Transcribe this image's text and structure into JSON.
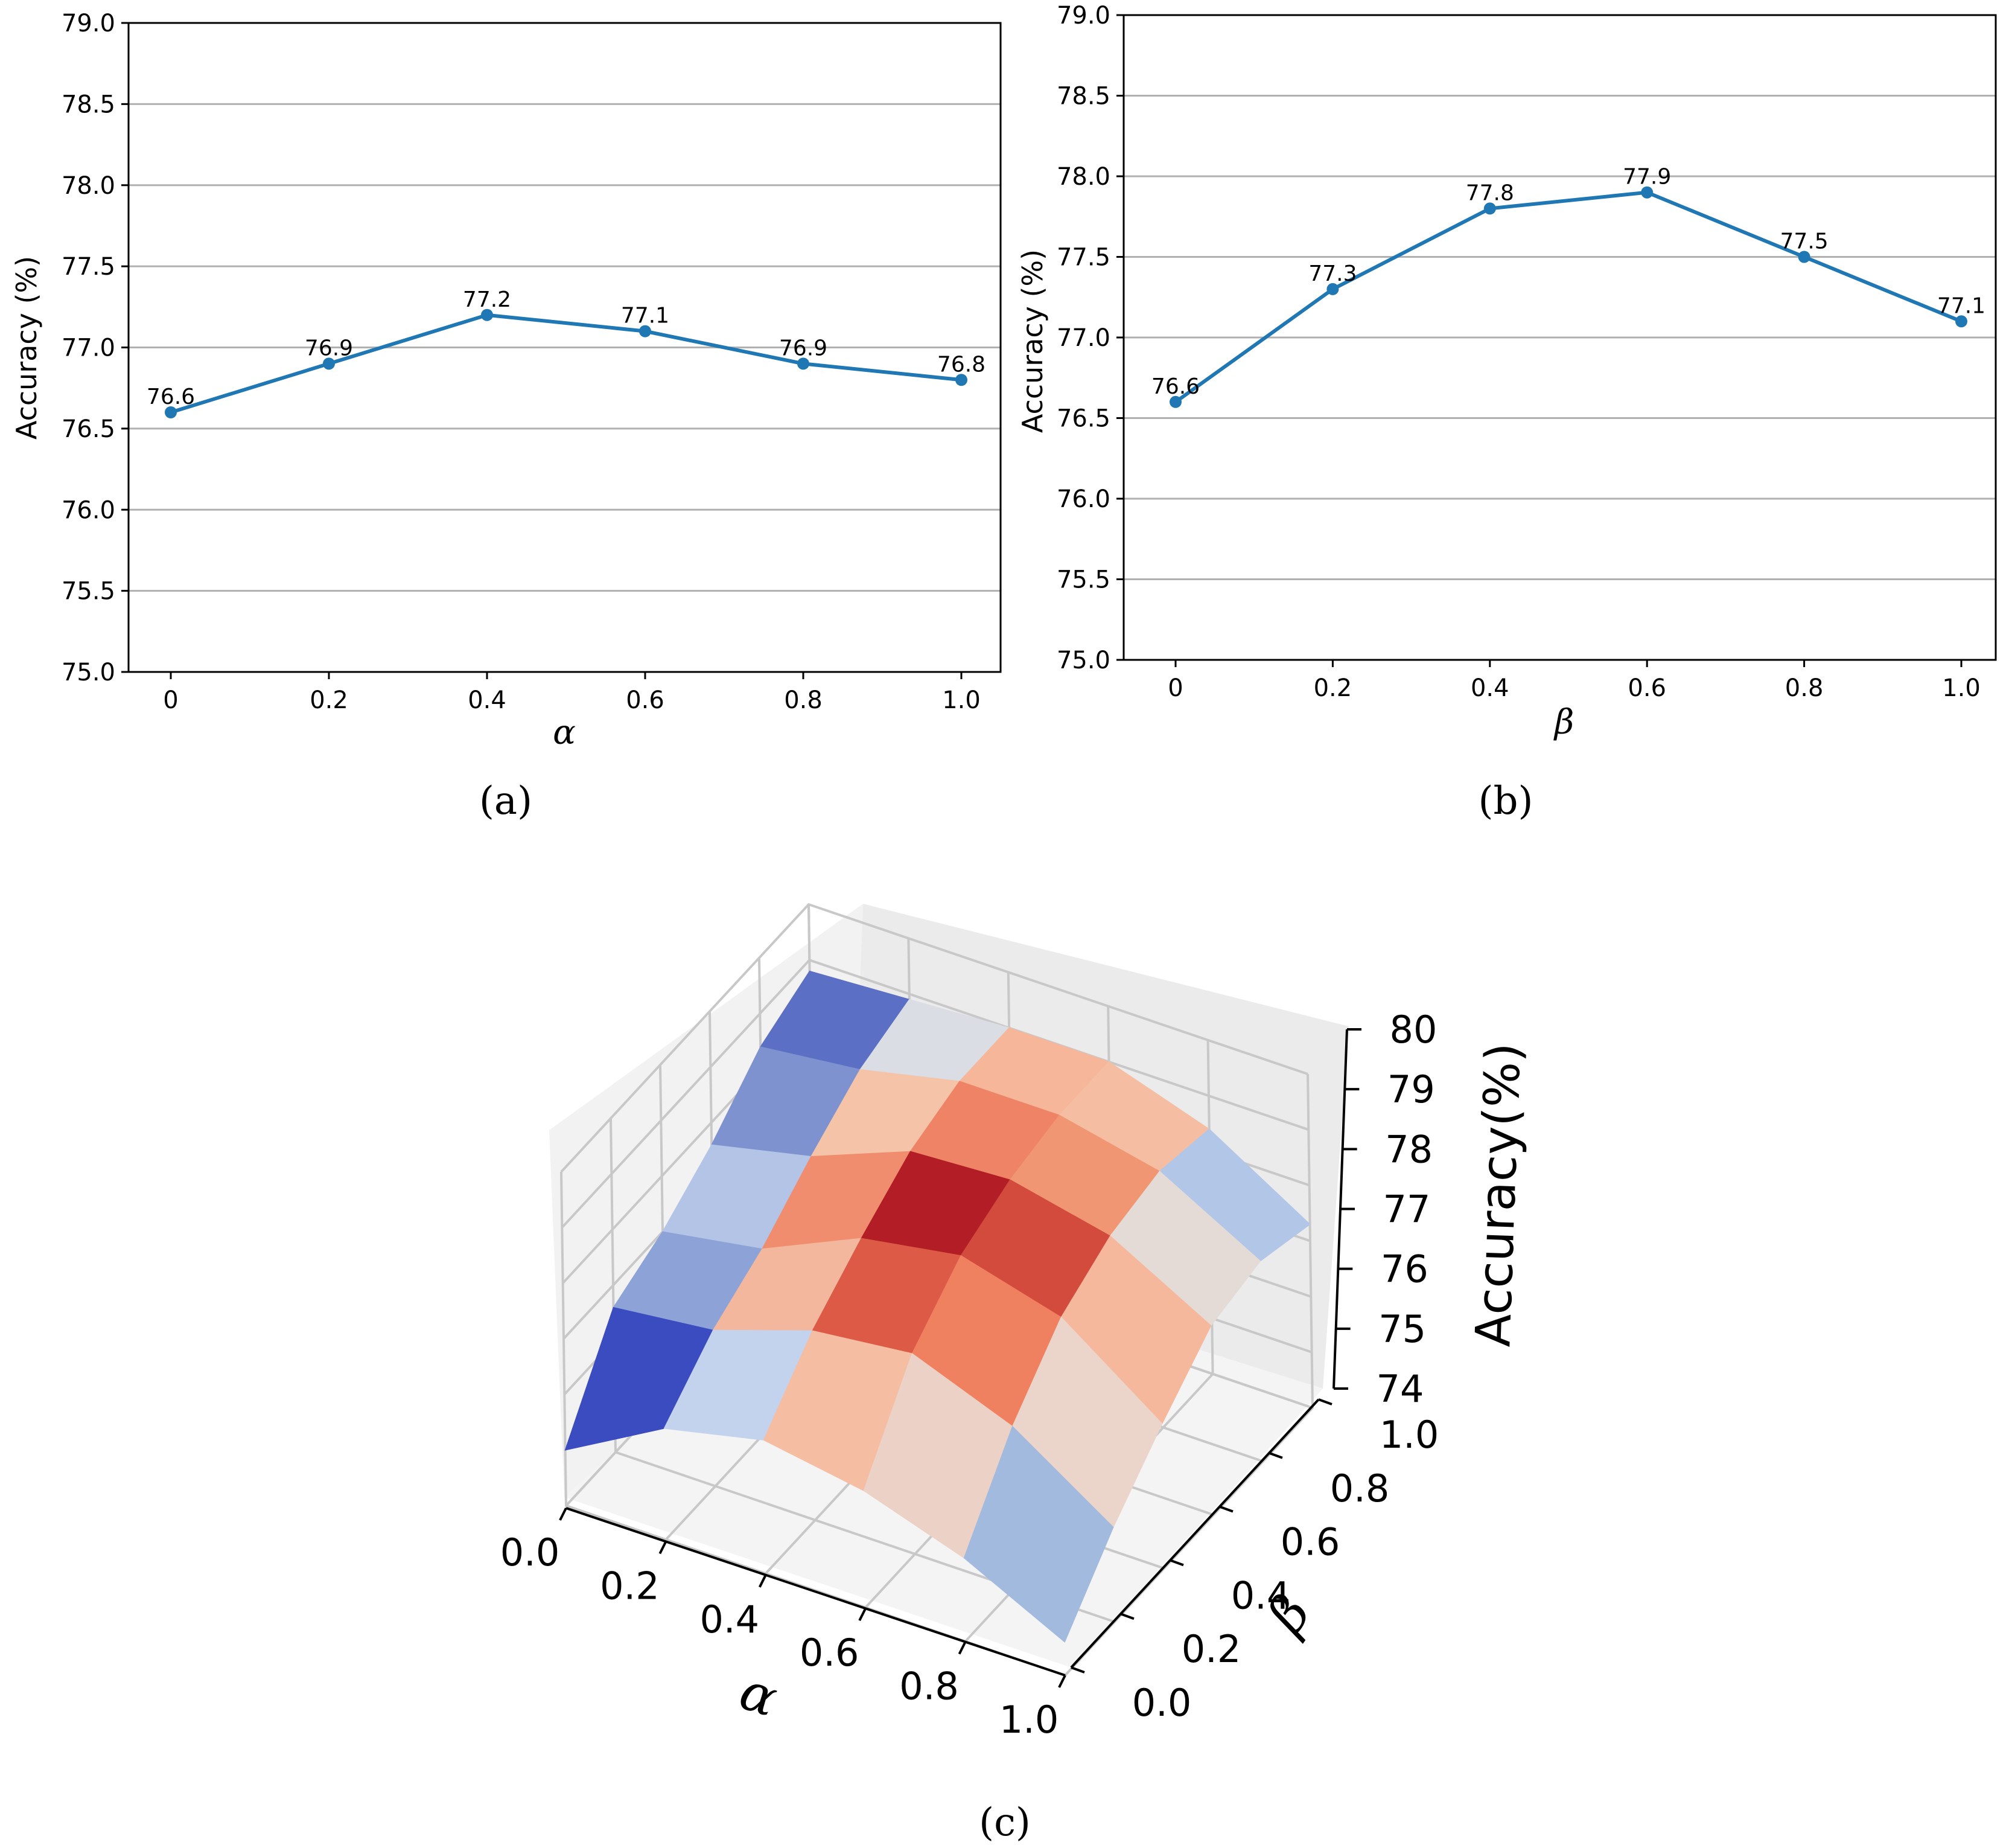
{
  "chart_data": [
    {
      "type": "line",
      "panel": "a",
      "caption": "(a)",
      "x": [
        "0",
        "0.2",
        "0.4",
        "0.6",
        "0.8",
        "1.0"
      ],
      "values": [
        76.6,
        76.9,
        77.2,
        77.1,
        76.9,
        76.8
      ],
      "point_labels": [
        "76.6",
        "76.9",
        "77.2",
        "77.1",
        "76.9",
        "76.8"
      ],
      "xlabel": "α",
      "ylabel": "Accuracy (%)",
      "ylim": [
        75.0,
        79.0
      ],
      "yticks": [
        "75.0",
        "75.5",
        "76.0",
        "76.5",
        "77.0",
        "77.5",
        "78.0",
        "78.5",
        "79.0"
      ],
      "grid": "horizontal",
      "color": "#1f77b4"
    },
    {
      "type": "line",
      "panel": "b",
      "caption": "(b)",
      "x": [
        "0",
        "0.2",
        "0.4",
        "0.6",
        "0.8",
        "1.0"
      ],
      "values": [
        76.6,
        77.3,
        77.8,
        77.9,
        77.5,
        77.1
      ],
      "point_labels": [
        "76.6",
        "77.3",
        "77.8",
        "77.9",
        "77.5",
        "77.1"
      ],
      "xlabel": "β",
      "ylabel": "Accuracy (%)",
      "ylim": [
        75.0,
        79.0
      ],
      "yticks": [
        "75.0",
        "75.5",
        "76.0",
        "76.5",
        "77.0",
        "77.5",
        "78.0",
        "78.5",
        "79.0"
      ],
      "grid": "horizontal",
      "color": "#1f77b4"
    },
    {
      "type": "surface",
      "panel": "c",
      "caption": "(c)",
      "alpha": [
        0.0,
        0.2,
        0.4,
        0.6,
        0.8,
        1.0
      ],
      "beta": [
        0.0,
        0.2,
        0.4,
        0.6,
        0.8,
        1.0
      ],
      "z_rows_by_alpha": [
        [
          75.0,
          76.6,
          77.0,
          77.6,
          78.4,
          78.8
        ],
        [
          76.0,
          76.8,
          77.3,
          78.0,
          78.6,
          78.9
        ],
        [
          76.4,
          77.4,
          78.1,
          78.7,
          79.0,
          79.0
        ],
        [
          76.1,
          77.6,
          78.4,
          78.8,
          79.0,
          79.0
        ],
        [
          75.5,
          76.9,
          77.9,
          78.4,
          78.6,
          78.4
        ],
        [
          74.6,
          75.7,
          76.6,
          77.4,
          77.6,
          77.3
        ]
      ],
      "cell_fill_colors": [
        [
          "#3b4cc0",
          "#8da3d8",
          "#b3c4e6",
          "#7d92cf",
          "#5b6fc4"
        ],
        [
          "#c3d3ee",
          "#f3b79d",
          "#f08d6e",
          "#f4c3a8",
          "#dadde3"
        ],
        [
          "#f5bda2",
          "#dc5a46",
          "#b31d26",
          "#ee8365",
          "#f5b69a"
        ],
        [
          "#ecd2c6",
          "#ef8161",
          "#d24b3c",
          "#f09673",
          "#f5bea3"
        ],
        [
          "#a3badf",
          "#ebd4c9",
          "#f6b89c",
          "#e5dbd6",
          "#b2c6e8"
        ]
      ],
      "xlabel": "α",
      "ylabel": "β",
      "zlabel": "Accuracy(%)",
      "xticks": [
        "0.0",
        "0.2",
        "0.4",
        "0.6",
        "0.8",
        "1.0"
      ],
      "yticks": [
        "0.0",
        "0.2",
        "0.4",
        "0.6",
        "0.8",
        "1.0"
      ],
      "zticks": [
        "74",
        "75",
        "76",
        "77",
        "78",
        "79",
        "80"
      ],
      "zlim": [
        74,
        80
      ],
      "colormap": "coolwarm"
    }
  ]
}
